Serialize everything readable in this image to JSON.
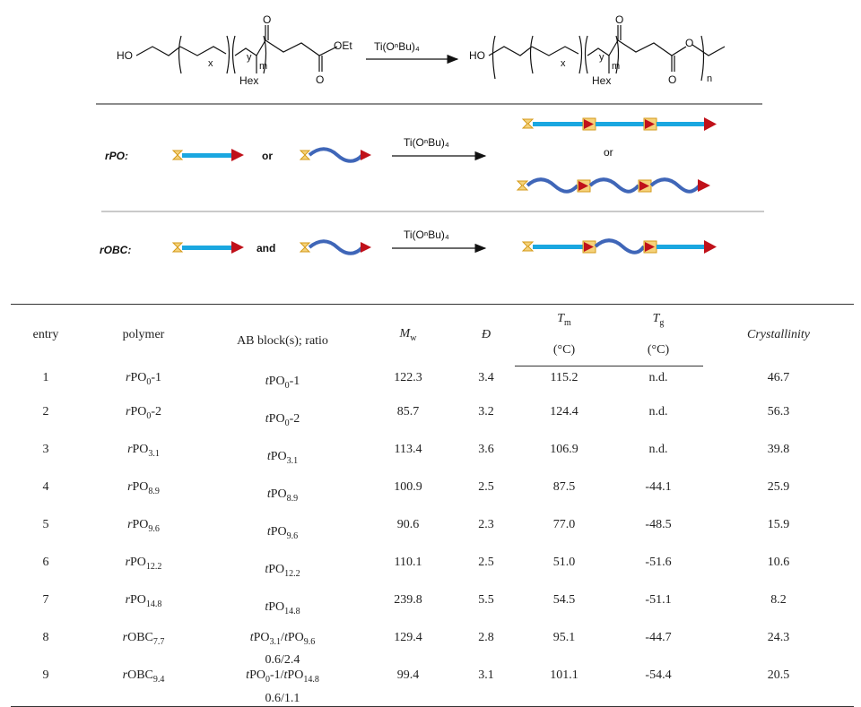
{
  "scheme": {
    "top": {
      "ho": "HO",
      "sub_x": "x",
      "sub_y": "y",
      "sub_m": "m",
      "hex": "Hex",
      "o_carbonyl": "O",
      "oet": "OEt",
      "o_ester": "O",
      "catalyst": "Ti(OⁿBu)₄",
      "ho_product": "HO",
      "sub_n": "n"
    },
    "rpo": {
      "label": "rPO:",
      "or": "or",
      "catalyst": "Ti(OⁿBu)₄",
      "or_product": "or"
    },
    "robc": {
      "label": "rOBC:",
      "and": "and",
      "catalyst": "Ti(OⁿBu)₄"
    },
    "colors": {
      "rod": "#1aa7e0",
      "coil": "#3f66b8",
      "arrowhead": "#c0111a",
      "end_fill": "#f5d27a",
      "end_stroke": "#d49a1a"
    }
  },
  "table": {
    "headers": {
      "entry": "entry",
      "polymer": "polymer",
      "ab": "AB block(s); ratio",
      "mw": "M",
      "mw_sub": "w",
      "d": "Đ",
      "tm": "T",
      "tm_sub": "m",
      "tm_unit": "(°C)",
      "tg": "T",
      "tg_sub": "g",
      "tg_unit": "(°C)",
      "cryst": "Crystallinity"
    },
    "rows": [
      {
        "entry": "1",
        "pol_pre": "r",
        "pol_base": "PO",
        "pol_sub": "0",
        "pol_suf": "-1",
        "ab1_pre": "t",
        "ab1_base": "PO",
        "ab1_sub": "0",
        "ab1_suf": "-1",
        "ab_sep": "",
        "ab2_pre": "",
        "ab2_base": "",
        "ab2_sub": "",
        "ab2_suf": "",
        "ratio": "",
        "mw": "122.3",
        "d": "3.4",
        "tm": "115.2",
        "tg": "n.d.",
        "cryst": "46.7"
      },
      {
        "entry": "2",
        "pol_pre": "r",
        "pol_base": "PO",
        "pol_sub": "0",
        "pol_suf": "-2",
        "ab1_pre": "t",
        "ab1_base": "PO",
        "ab1_sub": "0",
        "ab1_suf": "-2",
        "ab_sep": "",
        "ab2_pre": "",
        "ab2_base": "",
        "ab2_sub": "",
        "ab2_suf": "",
        "ratio": "",
        "mw": "85.7",
        "d": "3.2",
        "tm": "124.4",
        "tg": "n.d.",
        "cryst": "56.3"
      },
      {
        "entry": "3",
        "pol_pre": "r",
        "pol_base": "PO",
        "pol_sub": "3.1",
        "pol_suf": "",
        "ab1_pre": "t",
        "ab1_base": "PO",
        "ab1_sub": "3.1",
        "ab1_suf": "",
        "ab_sep": "",
        "ab2_pre": "",
        "ab2_base": "",
        "ab2_sub": "",
        "ab2_suf": "",
        "ratio": "",
        "mw": "113.4",
        "d": "3.6",
        "tm": "106.9",
        "tg": "n.d.",
        "cryst": "39.8"
      },
      {
        "entry": "4",
        "pol_pre": "r",
        "pol_base": "PO",
        "pol_sub": "8.9",
        "pol_suf": "",
        "ab1_pre": "t",
        "ab1_base": "PO",
        "ab1_sub": "8.9",
        "ab1_suf": "",
        "ab_sep": "",
        "ab2_pre": "",
        "ab2_base": "",
        "ab2_sub": "",
        "ab2_suf": "",
        "ratio": "",
        "mw": "100.9",
        "d": "2.5",
        "tm": "87.5",
        "tg": "-44.1",
        "cryst": "25.9"
      },
      {
        "entry": "5",
        "pol_pre": "r",
        "pol_base": "PO",
        "pol_sub": "9.6",
        "pol_suf": "",
        "ab1_pre": "t",
        "ab1_base": "PO",
        "ab1_sub": "9.6",
        "ab1_suf": "",
        "ab_sep": "",
        "ab2_pre": "",
        "ab2_base": "",
        "ab2_sub": "",
        "ab2_suf": "",
        "ratio": "",
        "mw": "90.6",
        "d": "2.3",
        "tm": "77.0",
        "tg": "-48.5",
        "cryst": "15.9"
      },
      {
        "entry": "6",
        "pol_pre": "r",
        "pol_base": "PO",
        "pol_sub": "12.2",
        "pol_suf": "",
        "ab1_pre": "t",
        "ab1_base": "PO",
        "ab1_sub": "12.2",
        "ab1_suf": "",
        "ab_sep": "",
        "ab2_pre": "",
        "ab2_base": "",
        "ab2_sub": "",
        "ab2_suf": "",
        "ratio": "",
        "mw": "110.1",
        "d": "2.5",
        "tm": "51.0",
        "tg": "-51.6",
        "cryst": "10.6"
      },
      {
        "entry": "7",
        "pol_pre": "r",
        "pol_base": "PO",
        "pol_sub": "14.8",
        "pol_suf": "",
        "ab1_pre": "t",
        "ab1_base": "PO",
        "ab1_sub": "14.8",
        "ab1_suf": "",
        "ab_sep": "",
        "ab2_pre": "",
        "ab2_base": "",
        "ab2_sub": "",
        "ab2_suf": "",
        "ratio": "",
        "mw": "239.8",
        "d": "5.5",
        "tm": "54.5",
        "tg": "-51.1",
        "cryst": "8.2"
      },
      {
        "entry": "8",
        "pol_pre": "r",
        "pol_base": "OBC",
        "pol_sub": "7.7",
        "pol_suf": "",
        "ab1_pre": "t",
        "ab1_base": "PO",
        "ab1_sub": "3.1",
        "ab1_suf": "",
        "ab_sep": "/",
        "ab2_pre": "t",
        "ab2_base": "PO",
        "ab2_sub": "9.6",
        "ab2_suf": "",
        "ratio": "0.6/2.4",
        "mw": "129.4",
        "d": "2.8",
        "tm": "95.1",
        "tg": "-44.7",
        "cryst": "24.3"
      },
      {
        "entry": "9",
        "pol_pre": "r",
        "pol_base": "OBC",
        "pol_sub": "9.4",
        "pol_suf": "",
        "ab1_pre": "t",
        "ab1_base": "PO",
        "ab1_sub": "0",
        "ab1_suf": "-1",
        "ab_sep": "/",
        "ab2_pre": "t",
        "ab2_base": "PO",
        "ab2_sub": "14.8",
        "ab2_suf": "",
        "ratio": "0.6/1.1",
        "mw": "99.4",
        "d": "3.1",
        "tm": "101.1",
        "tg": "-54.4",
        "cryst": "20.5"
      }
    ]
  }
}
